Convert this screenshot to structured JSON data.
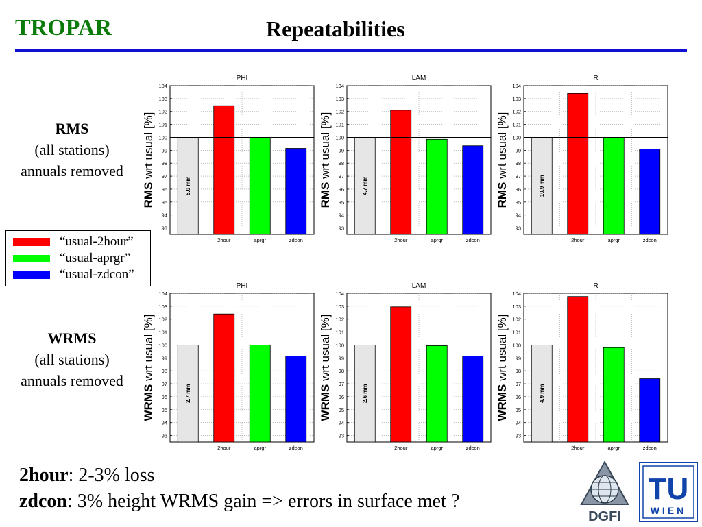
{
  "header": {
    "brand": "TROPAR",
    "title": "Repeatabilities"
  },
  "rows": [
    {
      "label": "RMS",
      "sub1": "(all stations)",
      "sub2": "annuals removed"
    },
    {
      "label": "WRMS",
      "sub1": "(all stations)",
      "sub2": "annuals removed"
    }
  ],
  "legend": [
    {
      "label": "“usual-2hour”",
      "color": "#ff0000"
    },
    {
      "label": "“usual-aprgr”",
      "color": "#00ff00"
    },
    {
      "label": "“usual-zdcon”",
      "color": "#0000ff"
    }
  ],
  "chart_data": [
    {
      "type": "bar",
      "title": "PHI",
      "ylabel_bold": "RMS",
      "ylabel_rest": " wrt usual [%]",
      "categories": [
        "2hour",
        "aprgr",
        "zdcon"
      ],
      "values": [
        102.45,
        100.0,
        99.15
      ],
      "baseline_label": "5.0 mm",
      "ylim": [
        92.5,
        104
      ],
      "yticks": [
        93,
        94,
        95,
        96,
        97,
        98,
        99,
        100,
        101,
        102,
        103,
        104
      ],
      "grid": true,
      "colors": [
        "#ff0000",
        "#00ff00",
        "#0000ff"
      ]
    },
    {
      "type": "bar",
      "title": "LAM",
      "ylabel_bold": "RMS",
      "ylabel_rest": " wrt usual [%]",
      "categories": [
        "2hour",
        "aprgr",
        "zdcon"
      ],
      "values": [
        102.1,
        99.85,
        99.35
      ],
      "baseline_label": "4.7 mm",
      "ylim": [
        92.5,
        104
      ],
      "yticks": [
        93,
        94,
        95,
        96,
        97,
        98,
        99,
        100,
        101,
        102,
        103,
        104
      ],
      "grid": true,
      "colors": [
        "#ff0000",
        "#00ff00",
        "#0000ff"
      ]
    },
    {
      "type": "bar",
      "title": "R",
      "ylabel_bold": "RMS",
      "ylabel_rest": " wrt usual [%]",
      "categories": [
        "2hour",
        "aprgr",
        "zdcon"
      ],
      "values": [
        103.4,
        100.0,
        99.1
      ],
      "baseline_label": "10.9 mm",
      "ylim": [
        92.5,
        104
      ],
      "yticks": [
        93,
        94,
        95,
        96,
        97,
        98,
        99,
        100,
        101,
        102,
        103,
        104
      ],
      "grid": true,
      "colors": [
        "#ff0000",
        "#00ff00",
        "#0000ff"
      ]
    },
    {
      "type": "bar",
      "title": "PHI",
      "ylabel_bold": "WRMS",
      "ylabel_rest": " wrt usual [%]",
      "categories": [
        "2hour",
        "aprgr",
        "zdcon"
      ],
      "values": [
        102.4,
        100.0,
        99.15
      ],
      "baseline_label": "2.7 mm",
      "ylim": [
        92.5,
        104
      ],
      "yticks": [
        93,
        94,
        95,
        96,
        97,
        98,
        99,
        100,
        101,
        102,
        103,
        104
      ],
      "grid": true,
      "colors": [
        "#ff0000",
        "#00ff00",
        "#0000ff"
      ]
    },
    {
      "type": "bar",
      "title": "LAM",
      "ylabel_bold": "WRMS",
      "ylabel_rest": " wrt usual [%]",
      "categories": [
        "2hour",
        "aprgr",
        "zdcon"
      ],
      "values": [
        102.95,
        99.95,
        99.15
      ],
      "baseline_label": "2.6 mm",
      "ylim": [
        92.5,
        104
      ],
      "yticks": [
        93,
        94,
        95,
        96,
        97,
        98,
        99,
        100,
        101,
        102,
        103,
        104
      ],
      "grid": true,
      "colors": [
        "#ff0000",
        "#00ff00",
        "#0000ff"
      ]
    },
    {
      "type": "bar",
      "title": "R",
      "ylabel_bold": "WRMS",
      "ylabel_rest": " wrt usual [%]",
      "categories": [
        "2hour",
        "aprgr",
        "zdcon"
      ],
      "values": [
        103.75,
        99.8,
        97.4
      ],
      "baseline_label": "4.9 mm",
      "ylim": [
        92.5,
        104
      ],
      "yticks": [
        93,
        94,
        95,
        96,
        97,
        98,
        99,
        100,
        101,
        102,
        103,
        104
      ],
      "grid": true,
      "colors": [
        "#ff0000",
        "#00ff00",
        "#0000ff"
      ]
    }
  ],
  "notes": [
    {
      "bold": "2hour",
      "rest": ": 2-3% loss"
    },
    {
      "bold": "zdcon",
      "rest": ": 3% height WRMS gain => errors in surface met ?"
    }
  ],
  "logos": {
    "dgfi": "DGFI",
    "tu": "TU",
    "tu_sub": "WIEN"
  }
}
